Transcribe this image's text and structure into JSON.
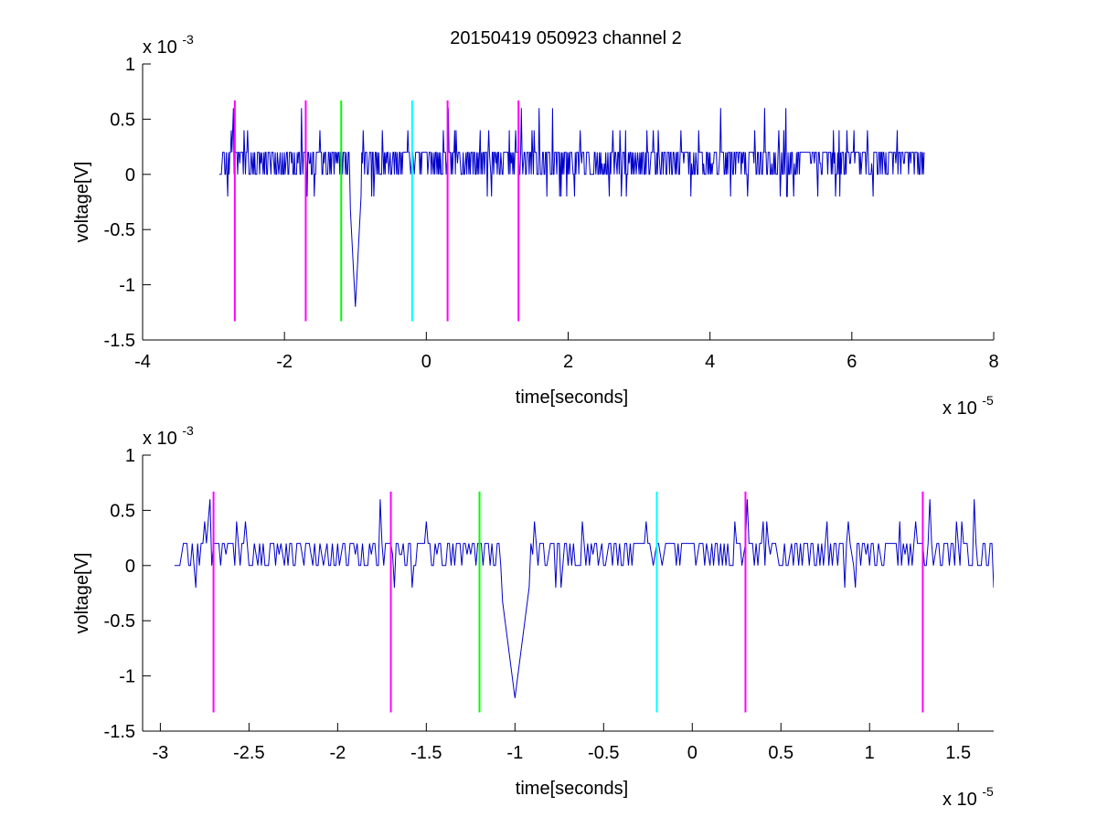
{
  "figure": {
    "title": "20150419 050923 channel 2",
    "background": "#ffffff"
  },
  "chart_data": [
    {
      "type": "line",
      "xlabel": "time[seconds]",
      "ylabel": "voltage[V]",
      "xlim": [
        -4e-05,
        8e-05
      ],
      "ylim": [
        -0.0015,
        0.001
      ],
      "x_ticks": [
        -4e-05,
        -2e-05,
        0,
        2e-05,
        4e-05,
        6e-05,
        8e-05
      ],
      "x_tick_labels": [
        "-4",
        "-2",
        "0",
        "2",
        "4",
        "6",
        "8"
      ],
      "y_ticks": [
        -0.0015,
        -0.001,
        -0.0005,
        0,
        0.0005,
        0.001
      ],
      "y_tick_labels": [
        "-1.5",
        "-1",
        "-0.5",
        "0",
        "0.5",
        "1"
      ],
      "x_exponent": "x 10",
      "x_exponent_power": "-5",
      "y_exponent": "x 10",
      "y_exponent_power": "-3",
      "grid": false,
      "series": [
        {
          "style": "noisy-trace",
          "color": "#0000cc",
          "x_start": -2.92e-05,
          "x_end": 7.02e-05,
          "x_step": 1e-07,
          "baseline_levels": [
            0,
            0.0001,
            0.0002
          ],
          "spike": {
            "x": -1e-05,
            "y_min": -0.0012
          },
          "y_max": 0.0006,
          "y_min": -0.0012
        }
      ],
      "markers": [
        {
          "x": -2.7e-05,
          "color": "#ff00ff",
          "y_top": 0.00067,
          "y_bottom": -0.00133
        },
        {
          "x": -1.7e-05,
          "color": "#ff00ff",
          "y_top": 0.00067,
          "y_bottom": -0.00133
        },
        {
          "x": -1.2e-05,
          "color": "#00ff00",
          "y_top": 0.00067,
          "y_bottom": -0.00133
        },
        {
          "x": -2e-06,
          "color": "#00ffff",
          "y_top": 0.00067,
          "y_bottom": -0.00133
        },
        {
          "x": 3e-06,
          "color": "#ff00ff",
          "y_top": 0.00067,
          "y_bottom": -0.00133
        },
        {
          "x": 1.3e-05,
          "color": "#ff00ff",
          "y_top": 0.00067,
          "y_bottom": -0.00133
        }
      ]
    },
    {
      "type": "line",
      "xlabel": "time[seconds]",
      "ylabel": "voltage[V]",
      "xlim": [
        -3.1e-05,
        1.7e-05
      ],
      "ylim": [
        -0.0015,
        0.001
      ],
      "x_ticks": [
        -3e-05,
        -2.5e-05,
        -2e-05,
        -1.5e-05,
        -1e-05,
        -5e-06,
        0,
        5e-06,
        1e-05,
        1.5e-05
      ],
      "x_tick_labels": [
        "-3",
        "-2.5",
        "-2",
        "-1.5",
        "-1",
        "-0.5",
        "0",
        "0.5",
        "1",
        "1.5"
      ],
      "y_ticks": [
        -0.0015,
        -0.001,
        -0.0005,
        0,
        0.0005,
        0.001
      ],
      "y_tick_labels": [
        "-1.5",
        "-1",
        "-0.5",
        "0",
        "0.5",
        "1"
      ],
      "x_exponent": "x 10",
      "x_exponent_power": "-5",
      "y_exponent": "x 10",
      "y_exponent_power": "-3",
      "grid": false,
      "series": [
        {
          "style": "noisy-trace",
          "color": "#0000cc",
          "x_start": -2.92e-05,
          "x_end": 1.7e-05,
          "x_step": 1e-07,
          "baseline_levels": [
            0,
            0.0001,
            0.0002
          ],
          "spike": {
            "x": -1e-05,
            "y_min": -0.0012
          },
          "y_max": 0.0006,
          "y_min": -0.0012
        }
      ],
      "markers": [
        {
          "x": -2.7e-05,
          "color": "#ff00ff",
          "y_top": 0.00067,
          "y_bottom": -0.00133
        },
        {
          "x": -1.7e-05,
          "color": "#ff00ff",
          "y_top": 0.00067,
          "y_bottom": -0.00133
        },
        {
          "x": -1.2e-05,
          "color": "#00ff00",
          "y_top": 0.00067,
          "y_bottom": -0.00133
        },
        {
          "x": -2e-06,
          "color": "#00ffff",
          "y_top": 0.00067,
          "y_bottom": -0.00133
        },
        {
          "x": 3e-06,
          "color": "#ff00ff",
          "y_top": 0.00067,
          "y_bottom": -0.00133
        },
        {
          "x": 1.3e-05,
          "color": "#ff00ff",
          "y_top": 0.00067,
          "y_bottom": -0.00133
        }
      ]
    }
  ]
}
